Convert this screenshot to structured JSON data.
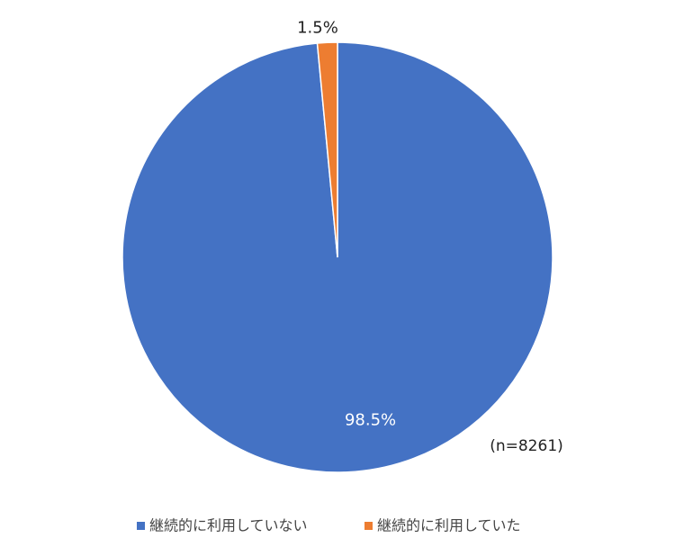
{
  "chart_data": {
    "type": "pie",
    "categories": [
      "継続的に利用していない",
      "継続的に利用していた"
    ],
    "values": [
      98.5,
      1.5
    ],
    "value_labels": [
      "98.5%",
      "1.5%"
    ],
    "colors": [
      "#4472c4",
      "#ed7d31"
    ],
    "annotation": "(n=8261)",
    "legend": "bottom"
  }
}
